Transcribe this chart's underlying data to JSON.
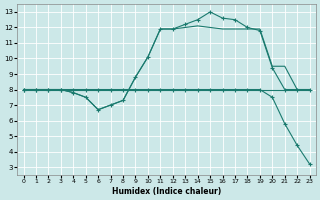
{
  "xlabel": "Humidex (Indice chaleur)",
  "bg_color": "#cce8e8",
  "grid_color": "#ffffff",
  "line_color": "#1a7a6e",
  "xlim": [
    -0.5,
    23.5
  ],
  "ylim": [
    2.5,
    13.5
  ],
  "xticks": [
    0,
    1,
    2,
    3,
    4,
    5,
    6,
    7,
    8,
    9,
    10,
    11,
    12,
    13,
    14,
    15,
    16,
    17,
    18,
    19,
    20,
    21,
    22,
    23
  ],
  "yticks": [
    3,
    4,
    5,
    6,
    7,
    8,
    9,
    10,
    11,
    12,
    13
  ],
  "line1_x": [
    0,
    1,
    2,
    3,
    4,
    5,
    6,
    7,
    8,
    9,
    10,
    11,
    12,
    13,
    14,
    15,
    16,
    17,
    18,
    19,
    20,
    21,
    22,
    23
  ],
  "line1_y": [
    8.0,
    8.0,
    8.0,
    8.0,
    7.8,
    7.5,
    6.7,
    7.0,
    7.3,
    8.8,
    10.1,
    11.9,
    11.9,
    12.0,
    12.1,
    12.0,
    11.9,
    11.9,
    11.9,
    11.9,
    9.5,
    9.5,
    8.0,
    8.0
  ],
  "line2_x": [
    0,
    1,
    2,
    3,
    4,
    5,
    6,
    7,
    8,
    9,
    10,
    11,
    12,
    13,
    14,
    15,
    16,
    17,
    18,
    19,
    20,
    21,
    22,
    23
  ],
  "line2_y": [
    8.0,
    8.0,
    8.0,
    8.0,
    7.8,
    7.5,
    6.7,
    7.0,
    7.3,
    8.8,
    10.1,
    11.9,
    11.9,
    12.2,
    12.5,
    13.0,
    12.6,
    12.5,
    12.0,
    11.8,
    9.4,
    8.0,
    8.0,
    8.0
  ],
  "line3_x": [
    0,
    1,
    2,
    3,
    4,
    5,
    6,
    7,
    8,
    9,
    10,
    11,
    12,
    13,
    14,
    15,
    16,
    17,
    18,
    19,
    20,
    21,
    22,
    23
  ],
  "line3_y": [
    8.0,
    8.0,
    8.0,
    8.0,
    8.0,
    8.0,
    8.0,
    8.0,
    8.0,
    8.0,
    8.0,
    8.0,
    8.0,
    8.0,
    8.0,
    8.0,
    8.0,
    8.0,
    8.0,
    8.0,
    7.5,
    5.8,
    4.4,
    3.2
  ],
  "line4_x": [
    0,
    1,
    2,
    3,
    4,
    5,
    6,
    7,
    8,
    9,
    10,
    11,
    12,
    13,
    14,
    15,
    16,
    17,
    18,
    19,
    20,
    21,
    22,
    23
  ],
  "line4_y": [
    8.0,
    8.0,
    8.0,
    8.0,
    8.0,
    8.0,
    8.0,
    8.0,
    8.0,
    8.0,
    8.0,
    8.0,
    8.0,
    8.0,
    8.0,
    8.0,
    8.0,
    8.0,
    8.0,
    8.0,
    8.0,
    8.0,
    8.0,
    8.0
  ]
}
